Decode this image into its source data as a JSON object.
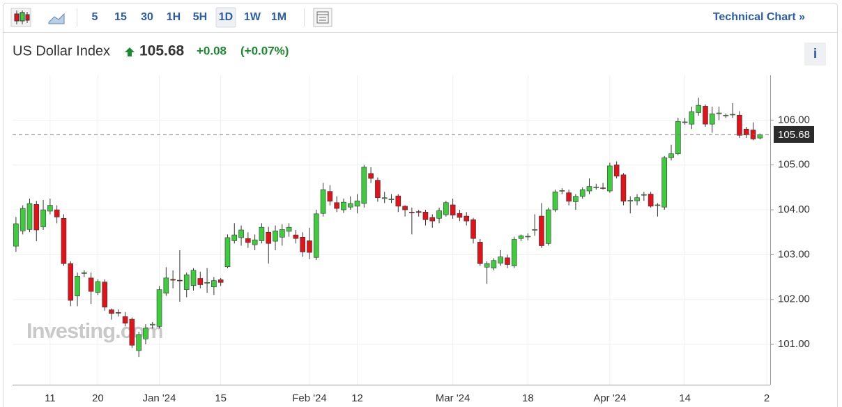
{
  "toolbar": {
    "intervals": [
      "5",
      "15",
      "30",
      "1H",
      "5H",
      "1D",
      "1W",
      "1M"
    ],
    "active": "1D",
    "link": "Technical Chart »"
  },
  "header": {
    "name": "US Dollar Index",
    "price": 105.68,
    "change": "+0.08",
    "change_pct": "(+0.07%)",
    "info": "i"
  },
  "chart_data": {
    "type": "candlestick",
    "watermark": "Investing.com",
    "categories": [
      null,
      null,
      null,
      null,
      null,
      "11",
      null,
      null,
      null,
      null,
      null,
      null,
      "20",
      null,
      null,
      null,
      null,
      null,
      null,
      null,
      null,
      "Jan '24",
      null,
      null,
      null,
      null,
      null,
      null,
      null,
      null,
      "15",
      null,
      null,
      null,
      null,
      null,
      null,
      null,
      null,
      null,
      null,
      null,
      null,
      "Feb '24",
      null,
      null,
      null,
      null,
      null,
      null,
      "12",
      null,
      null,
      null,
      null,
      null,
      null,
      null,
      null,
      null,
      null,
      null,
      null,
      null,
      "Mar '24",
      null,
      null,
      null,
      null,
      null,
      null,
      null,
      null,
      null,
      null,
      "18",
      null,
      null,
      null,
      null,
      null,
      null,
      null,
      null,
      null,
      null,
      null,
      "Apr '24",
      null,
      null,
      null,
      null,
      null,
      null,
      null,
      null,
      null,
      null,
      "14",
      null,
      null,
      null,
      null,
      null,
      null,
      null,
      null,
      null,
      null,
      null,
      "2"
    ],
    "open": [
      103.19,
      103.53,
      103.56,
      104.12,
      103.62,
      103.97,
      104.0,
      103.81,
      102.8,
      102.08,
      102.58,
      102.48,
      102.16,
      102.39,
      101.77,
      101.71,
      101.62,
      101.56,
      100.86,
      101.12,
      101.43,
      101.4,
      102.14,
      102.45,
      102.43,
      102.22,
      102.31,
      102.47,
      102.37,
      102.28,
      102.44,
      102.73,
      103.31,
      103.38,
      103.36,
      103.22,
      103.31,
      103.5,
      103.3,
      103.39,
      103.52,
      103.44,
      103.39,
      103.31,
      102.94,
      103.92,
      104.41,
      104.16,
      104.0,
      104.06,
      104.08,
      104.14,
      104.81,
      104.66,
      104.25,
      104.23,
      104.31,
      104.08,
      103.95,
      103.96,
      103.95,
      103.83,
      103.81,
      103.89,
      104.11,
      103.92,
      103.86,
      103.78,
      103.28,
      102.72,
      102.7,
      102.81,
      102.93,
      102.75,
      103.36,
      103.4,
      103.55,
      103.86,
      103.25,
      104.0,
      104.42,
      104.38,
      104.18,
      104.3,
      104.42,
      104.5,
      104.49,
      104.42,
      105.0,
      104.78,
      104.2,
      104.2,
      104.33,
      104.35,
      104.1,
      104.06,
      105.16,
      105.25,
      105.95,
      105.91,
      106.17,
      106.31,
      105.91,
      106.14,
      106.1,
      106.12,
      106.11,
      105.8,
      105.78,
      105.6,
      null
    ],
    "high": [
      103.84,
      104.1,
      104.25,
      104.2,
      104.22,
      104.25,
      104.1,
      103.9,
      102.85,
      102.6,
      102.65,
      102.6,
      102.45,
      102.45,
      101.8,
      101.78,
      101.72,
      101.6,
      101.28,
      101.45,
      101.5,
      102.3,
      102.72,
      102.65,
      103.1,
      102.6,
      102.7,
      102.62,
      102.7,
      102.5,
      102.48,
      103.45,
      103.7,
      103.65,
      103.5,
      103.45,
      103.7,
      103.62,
      103.65,
      103.68,
      103.7,
      103.55,
      103.5,
      103.6,
      104.0,
      104.6,
      104.55,
      104.3,
      104.25,
      104.3,
      104.35,
      105.0,
      104.95,
      104.72,
      104.4,
      104.35,
      104.35,
      104.1,
      104.05,
      104.0,
      104.0,
      103.9,
      104.05,
      104.2,
      104.25,
      104.0,
      103.95,
      103.82,
      103.35,
      102.85,
      102.92,
      103.1,
      103.0,
      103.4,
      103.45,
      103.48,
      103.9,
      104.15,
      104.05,
      104.45,
      104.48,
      104.45,
      104.35,
      104.5,
      104.7,
      104.58,
      104.6,
      105.05,
      105.08,
      104.82,
      104.3,
      104.35,
      104.4,
      104.4,
      104.15,
      105.2,
      105.45,
      106.05,
      106.05,
      106.3,
      106.5,
      106.35,
      106.3,
      106.3,
      106.15,
      106.38,
      106.2,
      105.85,
      105.95,
      105.7,
      null
    ],
    "low": [
      103.06,
      103.45,
      103.5,
      103.3,
      103.55,
      103.9,
      103.7,
      102.75,
      101.85,
      101.85,
      102.5,
      101.9,
      102.1,
      101.75,
      101.55,
      101.62,
      101.4,
      100.92,
      100.72,
      101.0,
      101.35,
      101.35,
      102.08,
      102.25,
      101.95,
      102.05,
      102.2,
      102.25,
      102.15,
      102.1,
      102.3,
      102.7,
      103.25,
      103.2,
      103.15,
      103.1,
      103.25,
      102.8,
      103.1,
      103.2,
      103.4,
      103.25,
      102.95,
      102.9,
      102.88,
      103.85,
      104.1,
      103.95,
      103.93,
      104.0,
      103.92,
      104.05,
      104.6,
      104.18,
      104.15,
      104.15,
      103.95,
      103.85,
      103.45,
      103.85,
      103.65,
      103.6,
      103.7,
      103.85,
      103.8,
      103.75,
      103.65,
      103.25,
      102.75,
      102.35,
      102.65,
      102.75,
      102.7,
      102.7,
      103.3,
      103.32,
      103.42,
      103.15,
      103.2,
      103.95,
      104.35,
      104.1,
      104.0,
      104.25,
      104.35,
      104.45,
      104.45,
      104.38,
      104.7,
      104.1,
      103.92,
      104.1,
      104.2,
      104.05,
      103.85,
      104.0,
      105.1,
      105.22,
      105.9,
      105.8,
      106.1,
      105.85,
      105.72,
      106.0,
      106.05,
      106.05,
      105.6,
      105.6,
      105.55,
      105.57,
      null
    ],
    "close": [
      103.69,
      104.03,
      104.14,
      103.55,
      104.0,
      104.1,
      103.84,
      102.8,
      101.98,
      102.52,
      102.6,
      102.18,
      102.4,
      101.83,
      101.69,
      101.7,
      101.47,
      100.98,
      101.22,
      101.36,
      101.45,
      102.22,
      102.48,
      102.43,
      102.42,
      102.55,
      102.65,
      102.33,
      102.38,
      102.42,
      102.38,
      103.38,
      103.44,
      103.55,
      103.27,
      103.33,
      103.61,
      103.25,
      103.53,
      103.56,
      103.61,
      103.36,
      103.06,
      103.05,
      103.91,
      104.45,
      104.19,
      104.03,
      104.17,
      104.14,
      104.2,
      104.95,
      104.7,
      104.27,
      104.27,
      104.24,
      104.08,
      104.0,
      103.94,
      103.94,
      103.78,
      103.75,
      103.98,
      104.16,
      103.88,
      103.83,
      103.75,
      103.36,
      102.8,
      102.8,
      102.87,
      102.95,
      102.78,
      103.34,
      103.42,
      103.41,
      103.56,
      103.2,
      104.0,
      104.4,
      104.43,
      104.19,
      104.3,
      104.45,
      104.52,
      104.51,
      104.48,
      104.98,
      104.75,
      104.19,
      104.21,
      104.27,
      104.34,
      104.08,
      104.11,
      105.16,
      105.25,
      105.97,
      105.96,
      106.19,
      106.33,
      105.91,
      106.14,
      106.16,
      106.11,
      106.13,
      105.66,
      105.67,
      105.58,
      105.68,
      null
    ],
    "up_color": "#3ccc3c",
    "down_color": "#e2121b",
    "ylim": [
      100.1,
      107.0
    ],
    "yticks": [
      {
        "value": 101,
        "label": "101.00"
      },
      {
        "value": 102,
        "label": "102.00"
      },
      {
        "value": 103,
        "label": "103.00"
      },
      {
        "value": 104,
        "label": "104.00"
      },
      {
        "value": 105,
        "label": "105.00"
      },
      {
        "value": 106,
        "label": "106.00"
      }
    ],
    "price_line": 105.68,
    "grid": true
  }
}
